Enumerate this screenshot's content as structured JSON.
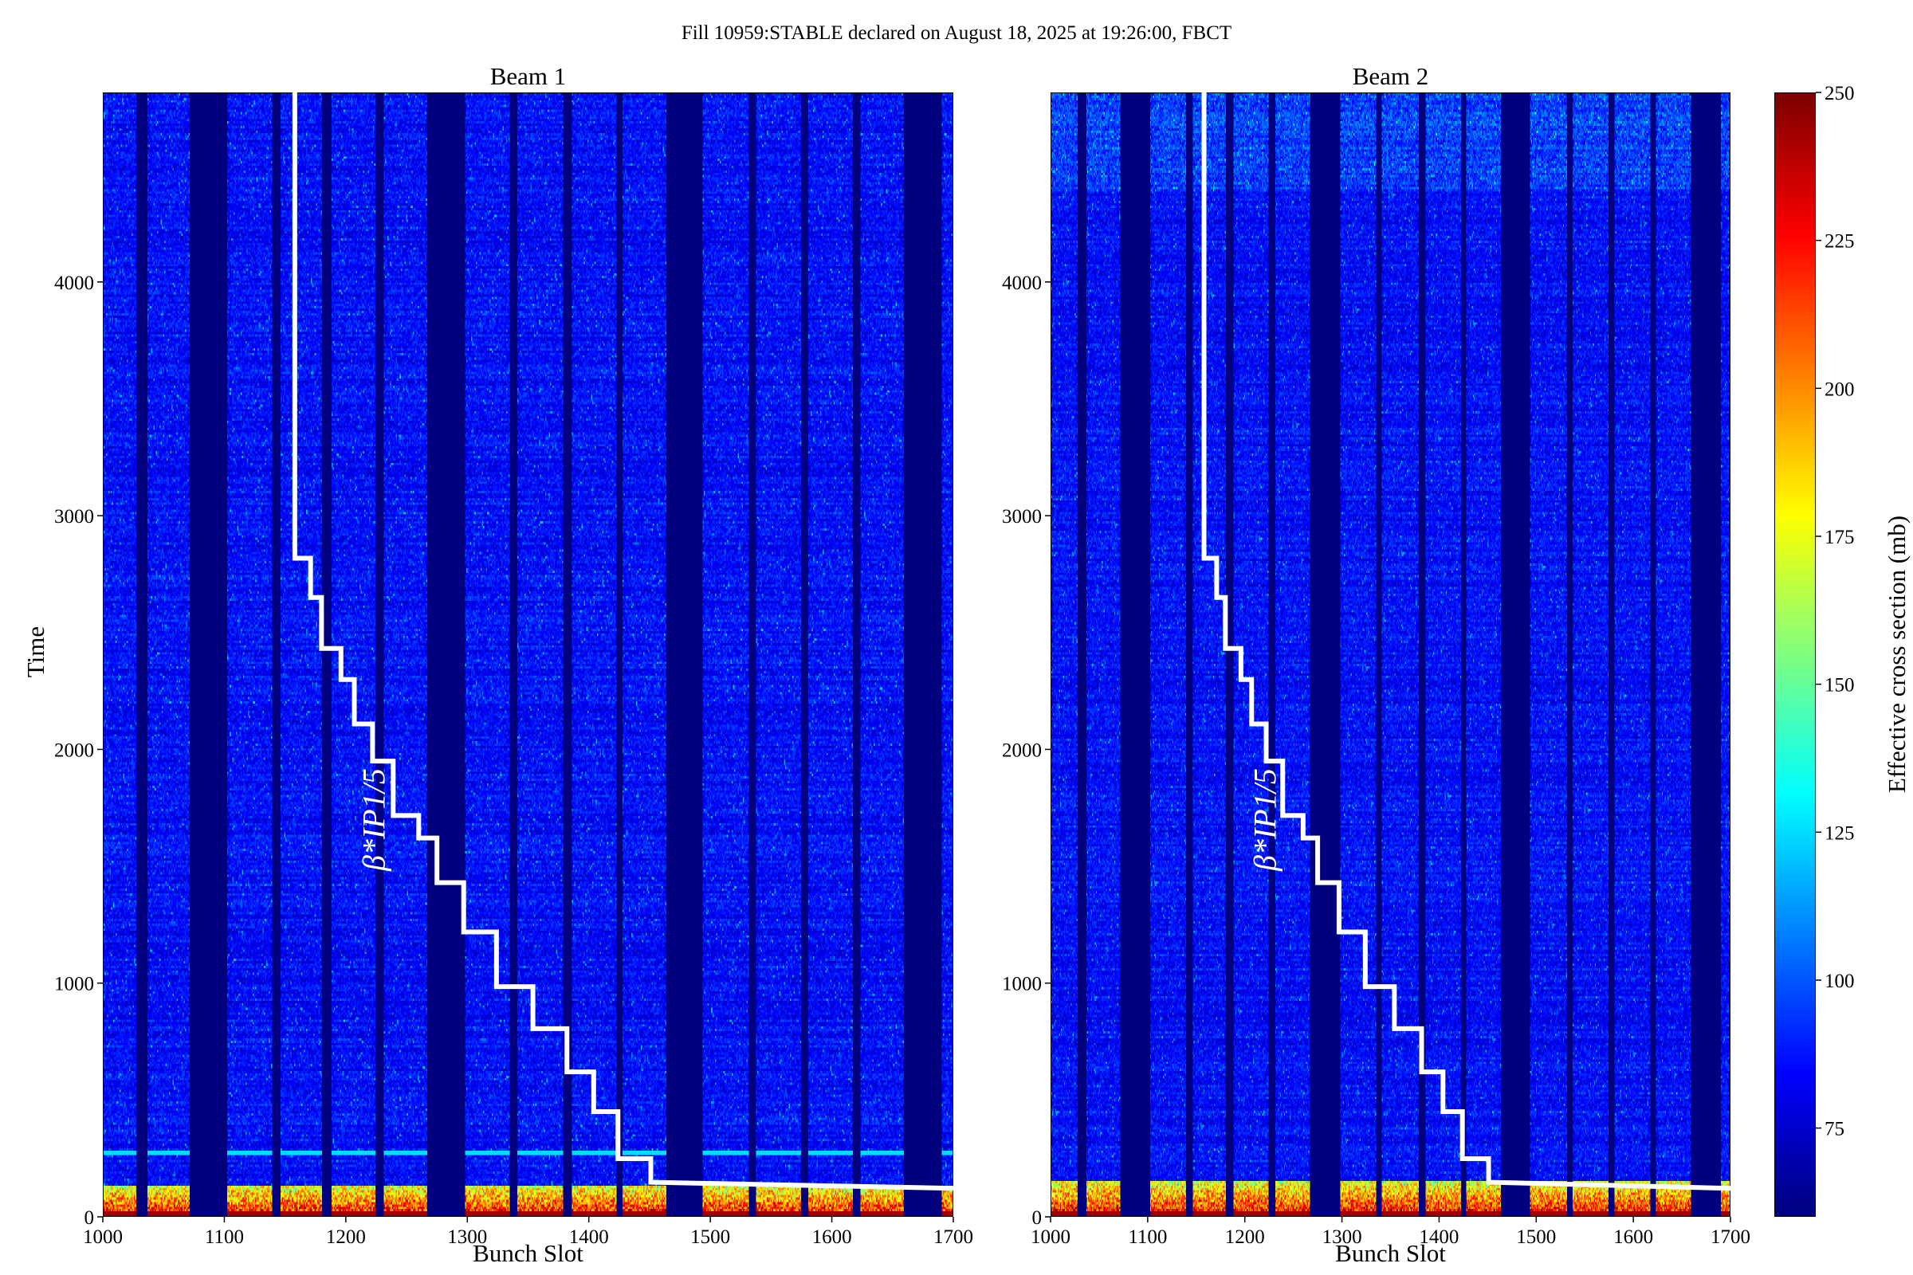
{
  "suptitle": "Fill 10959:STABLE declared on August 18, 2025 at 19:26:00, FBCT",
  "chart_data": [
    {
      "type": "heatmap",
      "title": "Beam 1",
      "xlabel": "Bunch Slot",
      "ylabel": "Time",
      "xlim": [
        1000,
        1700
      ],
      "ylim": [
        0,
        4811
      ],
      "xticks": [
        1000,
        1100,
        1200,
        1300,
        1400,
        1500,
        1600,
        1700
      ],
      "yticks": [
        0,
        1000,
        2000,
        3000,
        4000
      ],
      "empty_slot_ranges": [
        [
          1027,
          1036
        ],
        [
          1071,
          1102
        ],
        [
          1139,
          1146
        ],
        [
          1180,
          1188
        ],
        [
          1224,
          1231
        ],
        [
          1267,
          1298
        ],
        [
          1335,
          1341
        ],
        [
          1379,
          1386
        ],
        [
          1423,
          1428
        ],
        [
          1464,
          1494
        ],
        [
          1532,
          1538
        ],
        [
          1575,
          1581
        ],
        [
          1618,
          1624
        ],
        [
          1660,
          1691
        ]
      ],
      "typical_value": 85,
      "high_value_time_range": [
        0,
        130
      ],
      "cyan_line_time": 270,
      "annotation": "β*IP1/5",
      "beta_star_step_line": {
        "x": [
          1158,
          1158,
          1171,
          1171,
          1180,
          1180,
          1196,
          1196,
          1207,
          1207,
          1222,
          1222,
          1239,
          1239,
          1260,
          1260,
          1275,
          1275,
          1297,
          1297,
          1324,
          1324,
          1354,
          1354,
          1382,
          1382,
          1404,
          1404,
          1424,
          1424,
          1451,
          1451,
          1700
        ],
        "y": [
          4811,
          2818,
          2818,
          2650,
          2650,
          2432,
          2432,
          2299,
          2299,
          2109,
          2109,
          1950,
          1950,
          1717,
          1717,
          1621,
          1621,
          1430,
          1430,
          1219,
          1219,
          985,
          985,
          805,
          805,
          620,
          620,
          450,
          450,
          249,
          249,
          148,
          122
        ],
        "color": "#ffffff"
      }
    },
    {
      "type": "heatmap",
      "title": "Beam 2",
      "xlabel": "Bunch Slot",
      "ylabel": "",
      "xlim": [
        1000,
        1700
      ],
      "ylim": [
        0,
        4811
      ],
      "xticks": [
        1000,
        1100,
        1200,
        1300,
        1400,
        1500,
        1600,
        1700
      ],
      "yticks": [
        0,
        1000,
        2000,
        3000,
        4000
      ],
      "empty_slot_ranges": [
        [
          1027,
          1036
        ],
        [
          1071,
          1102
        ],
        [
          1139,
          1146
        ],
        [
          1180,
          1188
        ],
        [
          1224,
          1231
        ],
        [
          1267,
          1298
        ],
        [
          1335,
          1341
        ],
        [
          1379,
          1386
        ],
        [
          1423,
          1428
        ],
        [
          1464,
          1494
        ],
        [
          1532,
          1538
        ],
        [
          1575,
          1581
        ],
        [
          1618,
          1624
        ],
        [
          1660,
          1691
        ]
      ],
      "typical_value": 85,
      "high_value_time_range": [
        0,
        150
      ],
      "annotation": "β*IP1/5",
      "beta_star_step_line": {
        "x": [
          1158,
          1158,
          1171,
          1171,
          1180,
          1180,
          1196,
          1196,
          1207,
          1207,
          1222,
          1222,
          1239,
          1239,
          1260,
          1260,
          1275,
          1275,
          1297,
          1297,
          1324,
          1324,
          1354,
          1354,
          1382,
          1382,
          1404,
          1404,
          1424,
          1424,
          1451,
          1451,
          1700
        ],
        "y": [
          4811,
          2818,
          2818,
          2650,
          2650,
          2432,
          2432,
          2299,
          2299,
          2109,
          2109,
          1950,
          1950,
          1717,
          1717,
          1621,
          1621,
          1430,
          1430,
          1219,
          1219,
          985,
          985,
          805,
          805,
          620,
          620,
          450,
          450,
          249,
          249,
          148,
          122
        ],
        "color": "#ffffff"
      }
    }
  ],
  "colorbar": {
    "label": "Effective cross section (mb)",
    "colormap": "jet",
    "range": [
      60,
      250
    ],
    "ticks": [
      75,
      100,
      125,
      150,
      175,
      200,
      225,
      250
    ]
  }
}
